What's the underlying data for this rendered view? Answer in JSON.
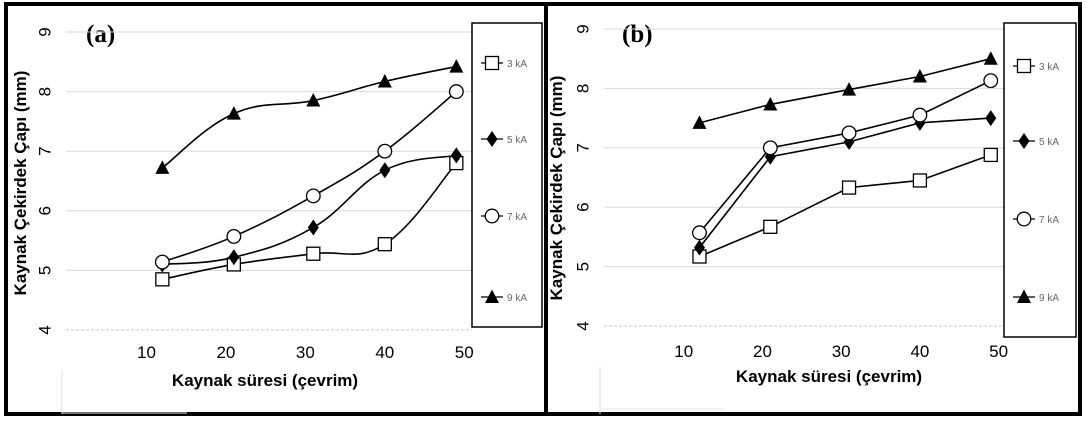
{
  "chart_data": [
    {
      "panel_label": "(a)",
      "type": "line",
      "xlabel": "Kaynak süresi (çevrim)",
      "ylabel": "Kaynak Çekirdek Çapı (mm)",
      "xlim": [
        0,
        55
      ],
      "ylim": [
        4,
        9
      ],
      "xticks": [
        10,
        20,
        30,
        40,
        50
      ],
      "yticks": [
        4,
        5,
        6,
        7,
        8,
        9
      ],
      "grid": "horizontal",
      "legend_position": "right",
      "smooth": true,
      "series": [
        {
          "name": "3 kA",
          "marker": "square-open",
          "x": [
            12,
            21,
            31,
            40,
            49
          ],
          "y": [
            4.85,
            5.1,
            5.28,
            5.44,
            6.8
          ]
        },
        {
          "name": "5 kA",
          "marker": "diamond-filled",
          "x": [
            12,
            21,
            31,
            40,
            49
          ],
          "y": [
            5.1,
            5.22,
            5.72,
            6.68,
            6.93
          ]
        },
        {
          "name": "7 kA",
          "marker": "circle-open",
          "x": [
            12,
            21,
            31,
            40,
            49
          ],
          "y": [
            5.14,
            5.57,
            6.25,
            7.0,
            8.0
          ]
        },
        {
          "name": "9 kA",
          "marker": "triangle-filled",
          "x": [
            12,
            21,
            31,
            40,
            49
          ],
          "y": [
            6.72,
            7.63,
            7.85,
            8.17,
            8.42
          ]
        }
      ]
    },
    {
      "panel_label": "(b)",
      "type": "line",
      "xlabel": "Kaynak süresi (çevrim)",
      "ylabel": "Kaynak Çekirdek Çapı (mm)",
      "xlim": [
        0,
        55
      ],
      "ylim": [
        4,
        9
      ],
      "xticks": [
        10,
        20,
        30,
        40,
        50
      ],
      "yticks": [
        4,
        5,
        6,
        7,
        8,
        9
      ],
      "grid": "horizontal",
      "legend_position": "right",
      "smooth": false,
      "series": [
        {
          "name": "3 kA",
          "marker": "square-open",
          "x": [
            12,
            21,
            31,
            40,
            49
          ],
          "y": [
            5.17,
            5.67,
            6.33,
            6.45,
            6.88
          ]
        },
        {
          "name": "5 kA",
          "marker": "diamond-filled",
          "x": [
            12,
            21,
            31,
            40,
            49
          ],
          "y": [
            5.32,
            6.85,
            7.1,
            7.42,
            7.5
          ]
        },
        {
          "name": "7 kA",
          "marker": "circle-open",
          "x": [
            12,
            21,
            31,
            40,
            49
          ],
          "y": [
            5.57,
            7.0,
            7.25,
            7.55,
            8.13
          ]
        },
        {
          "name": "9 kA",
          "marker": "triangle-filled",
          "x": [
            12,
            21,
            31,
            40,
            49
          ],
          "y": [
            7.42,
            7.73,
            7.98,
            8.2,
            8.5
          ]
        }
      ]
    }
  ]
}
